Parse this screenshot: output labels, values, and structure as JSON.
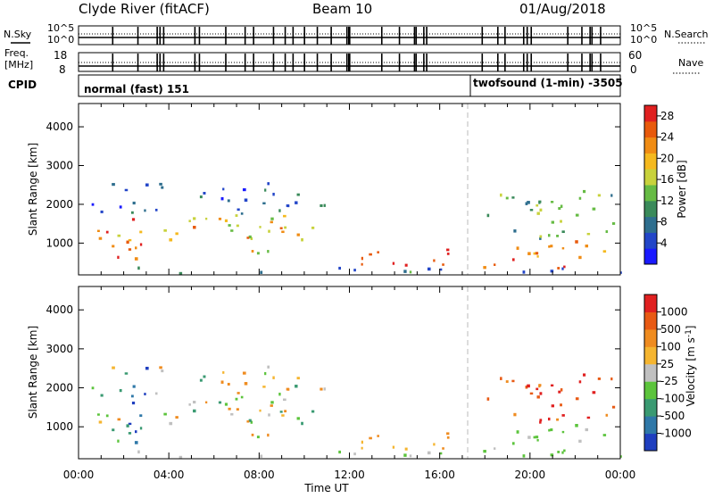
{
  "header": {
    "station": "Clyde River (fitACF)",
    "beam": "Beam 10",
    "date": "01/Aug/2018"
  },
  "aux": {
    "nsky_label": "N.Sky",
    "nsearch_label": "N.Search",
    "nsky_ticks": [
      "10^5",
      "10^0"
    ],
    "nsky_right_ticks": [
      "10^5",
      "10^0"
    ],
    "freq_label_1": "Freq.",
    "freq_label_2": "[MHz]",
    "freq_ticks": [
      "18",
      "8"
    ],
    "nave_label": "Nave",
    "nave_ticks": [
      "60",
      "0"
    ],
    "cpid_label": "CPID",
    "mode_1": "normal (fast) 151",
    "mode_2": "twofsound (1-min) -3505"
  },
  "chart_data": [
    {
      "type": "heatmap",
      "panel": "power",
      "ylabel": "Slant Range [km]",
      "xlabel": "Time UT",
      "x_ticks": [
        "00:00",
        "04:00",
        "08:00",
        "12:00",
        "16:00",
        "20:00",
        "00:00"
      ],
      "y_ticks": [
        1000,
        2000,
        3000,
        4000
      ],
      "ylim": [
        180,
        4600
      ],
      "xlim_hours": [
        0,
        24
      ],
      "colorbar": {
        "label": "Power [dB]",
        "ticks": [
          "4",
          "8",
          "12",
          "16",
          "20",
          "24",
          "28"
        ],
        "range": [
          0,
          30
        ],
        "colors": [
          "#1a1aff",
          "#2346c8",
          "#2e6e8e",
          "#3a8a5a",
          "#66bb44",
          "#c8d23c",
          "#f5b91e",
          "#f08c14",
          "#e85a0c",
          "#e02020"
        ]
      }
    },
    {
      "type": "heatmap",
      "panel": "velocity",
      "ylabel": "Slant Range [km]",
      "xlabel": "Time UT",
      "x_ticks": [
        "00:00",
        "04:00",
        "08:00",
        "12:00",
        "16:00",
        "20:00",
        "00:00"
      ],
      "y_ticks": [
        1000,
        2000,
        3000,
        4000
      ],
      "ylim": [
        180,
        4600
      ],
      "xlim_hours": [
        0,
        24
      ],
      "colorbar": {
        "label": "Velocity [m s^-1]",
        "ticks": [
          "1000",
          "500",
          "100",
          "25",
          "-25",
          "-100",
          "-500",
          "-1000"
        ],
        "colors": [
          "#1f3fbf",
          "#2f78a8",
          "#3a9a72",
          "#5cc43c",
          "#c0c0c0",
          "#f5b530",
          "#ef8c20",
          "#e85a14",
          "#e02020"
        ]
      }
    }
  ]
}
